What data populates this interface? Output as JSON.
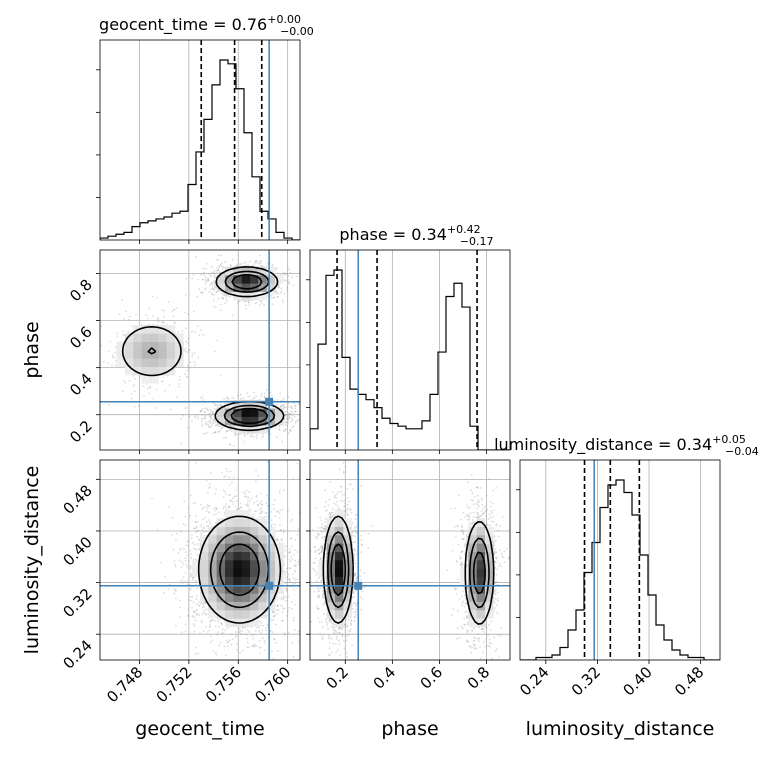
{
  "colors": {
    "truth": "#4682b4",
    "hist": "#000000",
    "quantile": "#000000",
    "grid": "#b0b0b0",
    "scatter": "#9a9a9a"
  },
  "chart_data": {
    "type": "corner",
    "parameters": [
      "geocent_time",
      "phase",
      "luminosity_distance"
    ],
    "truths": {
      "geocent_time": 0.7585,
      "phase": 0.255,
      "luminosity_distance": 0.315
    },
    "titles": [
      {
        "param": "geocent_time",
        "text": "geocent_time = 0.76",
        "sup": "+0.00",
        "sub": "−0.00"
      },
      {
        "param": "phase",
        "text": "phase = 0.34",
        "sup": "+0.42",
        "sub": "−0.17"
      },
      {
        "param": "luminosity_distance",
        "text": "luminosity_distance = 0.34",
        "sup": "+0.05",
        "sub": "−0.04"
      }
    ],
    "axes": {
      "geocent_time": {
        "range": [
          0.7448,
          0.761
        ],
        "ticks": [
          "0.748",
          "0.752",
          "0.756",
          "0.760"
        ]
      },
      "phase": {
        "range": [
          0.05,
          0.9
        ],
        "ticks": [
          "0.2",
          "0.4",
          "0.6",
          "0.8"
        ]
      },
      "luminosity_distance": {
        "range": [
          0.2,
          0.51
        ],
        "ticks": [
          "0.24",
          "0.32",
          "0.40",
          "0.48"
        ]
      }
    },
    "histograms": {
      "geocent_time": {
        "quantiles": [
          0.753,
          0.7557,
          0.7579
        ],
        "counts": [
          1,
          2,
          3,
          4,
          7,
          9,
          10,
          11,
          12,
          14,
          15,
          29,
          46,
          63,
          81,
          94,
          92,
          79,
          56,
          33,
          15,
          11,
          4,
          1,
          0
        ]
      },
      "phase": {
        "quantiles": [
          0.165,
          0.335,
          0.76
        ],
        "counts": [
          8,
          40,
          66,
          68,
          35,
          23,
          21,
          19,
          16,
          12,
          10,
          9,
          8,
          8,
          11,
          21,
          37,
          58,
          63,
          54,
          9,
          0,
          0,
          0,
          0
        ]
      },
      "luminosity_distance": {
        "quantiles": [
          0.3,
          0.34,
          0.385
        ],
        "counts": [
          0,
          0,
          1,
          1,
          2,
          5,
          12,
          20,
          35,
          47,
          61,
          70,
          72,
          67,
          58,
          42,
          26,
          14,
          8,
          4,
          2,
          1,
          1,
          0,
          0
        ]
      }
    },
    "modes": [
      {
        "pair": [
          "geocent_time",
          "phase"
        ],
        "peaks": [
          {
            "x": 0.7569,
            "y": 0.195,
            "sx": 0.0013,
            "sy": 0.028,
            "w": 0.46
          },
          {
            "x": 0.7567,
            "y": 0.765,
            "sx": 0.0012,
            "sy": 0.03,
            "w": 0.4
          },
          {
            "x": 0.749,
            "y": 0.47,
            "sx": 0.0016,
            "sy": 0.07,
            "w": 0.14
          }
        ]
      },
      {
        "pair": [
          "geocent_time",
          "luminosity_distance"
        ],
        "peaks": [
          {
            "x": 0.7561,
            "y": 0.34,
            "sx": 0.0016,
            "sy": 0.04,
            "w": 1.0
          }
        ]
      },
      {
        "pair": [
          "phase",
          "luminosity_distance"
        ],
        "peaks": [
          {
            "x": 0.17,
            "y": 0.34,
            "sx": 0.03,
            "sy": 0.04,
            "w": 0.54
          },
          {
            "x": 0.77,
            "y": 0.335,
            "sx": 0.03,
            "sy": 0.04,
            "w": 0.46
          }
        ]
      }
    ]
  }
}
